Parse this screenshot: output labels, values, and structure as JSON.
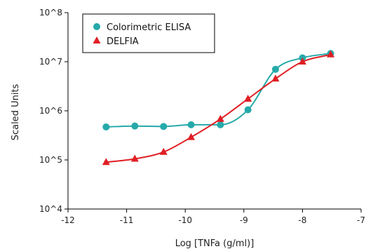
{
  "chart_data": {
    "type": "scatter",
    "title": "",
    "xlabel": "Log [TNFa (g/ml)]",
    "ylabel": "Scaled Units",
    "xlim": [
      -12,
      -7
    ],
    "ylim_log10": [
      4,
      8
    ],
    "y_scale": "log",
    "x_ticks": [
      -12,
      -11,
      -10,
      -9,
      -8,
      -7
    ],
    "x_tick_labels": [
      "-12",
      "-11",
      "-10",
      "-9",
      "-8",
      "-7"
    ],
    "y_ticks": [
      4,
      5,
      6,
      7,
      8
    ],
    "y_tick_labels": [
      "10^4",
      "10^5",
      "10^6",
      "10^7",
      "10^8"
    ],
    "grid": false,
    "legend_position": "top-left",
    "series": [
      {
        "name": "Colorimetric ELISA",
        "marker": "circle",
        "color": "#26a9a9",
        "x": [
          -11.35,
          -10.86,
          -10.37,
          -9.9,
          -9.4,
          -8.93,
          -8.46,
          -8.0,
          -7.52
        ],
        "y": [
          470000,
          490000,
          480000,
          520000,
          520000,
          1050000,
          7000000,
          12000000,
          14700000
        ],
        "fit_curve": true
      },
      {
        "name": "DELFIA",
        "marker": "triangle",
        "color": "#e01e24",
        "x": [
          -11.35,
          -10.86,
          -10.37,
          -9.9,
          -9.4,
          -8.93,
          -8.46,
          -8.0,
          -7.52
        ],
        "y": [
          90000,
          105000,
          145000,
          290000,
          680000,
          1750000,
          4500000,
          10000000,
          14000000
        ],
        "fit_curve": true
      }
    ]
  }
}
